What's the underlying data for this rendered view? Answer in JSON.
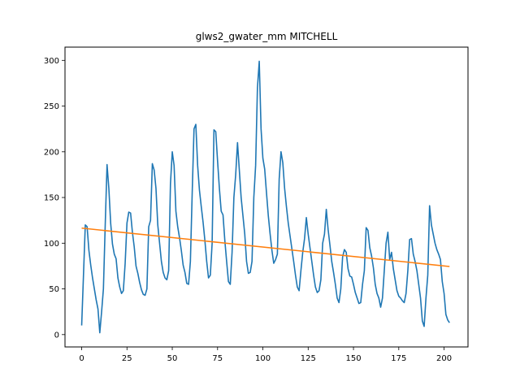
{
  "chart_data": {
    "type": "line",
    "title": "glws2_gwater_mm MITCHELL",
    "xlabel": "",
    "ylabel": "",
    "xlim": [
      -9.2,
      213.2
    ],
    "ylim": [
      -13.5,
      314.5
    ],
    "grid": false,
    "xticks": [
      0,
      25,
      50,
      75,
      100,
      125,
      150,
      175,
      200
    ],
    "yticks": [
      0,
      50,
      100,
      150,
      200,
      250,
      300
    ],
    "series": [
      {
        "color": "#1f77b4",
        "x": [
          0,
          1,
          2,
          3,
          4,
          5,
          6,
          7,
          8,
          9,
          10,
          11,
          12,
          13,
          14,
          15,
          16,
          17,
          18,
          19,
          20,
          21,
          22,
          23,
          24,
          25,
          26,
          27,
          28,
          29,
          30,
          31,
          32,
          33,
          34,
          35,
          36,
          37,
          38,
          39,
          40,
          41,
          42,
          43,
          44,
          45,
          46,
          47,
          48,
          49,
          50,
          51,
          52,
          53,
          54,
          55,
          56,
          57,
          58,
          59,
          60,
          61,
          62,
          63,
          64,
          65,
          66,
          67,
          68,
          69,
          70,
          71,
          72,
          73,
          74,
          75,
          76,
          77,
          78,
          79,
          80,
          81,
          82,
          83,
          84,
          85,
          86,
          87,
          88,
          89,
          90,
          91,
          92,
          93,
          94,
          95,
          96,
          97,
          98,
          99,
          100,
          101,
          102,
          103,
          104,
          105,
          106,
          107,
          108,
          109,
          110,
          111,
          112,
          113,
          114,
          115,
          116,
          117,
          118,
          119,
          120,
          121,
          122,
          123,
          124,
          125,
          126,
          127,
          128,
          129,
          130,
          131,
          132,
          133,
          134,
          135,
          136,
          137,
          138,
          139,
          140,
          141,
          142,
          143,
          144,
          145,
          146,
          147,
          148,
          149,
          150,
          151,
          152,
          153,
          154,
          155,
          156,
          157,
          158,
          159,
          160,
          161,
          162,
          163,
          164,
          165,
          166,
          167,
          168,
          169,
          170,
          171,
          172,
          173,
          174,
          175,
          176,
          177,
          178,
          179,
          180,
          181,
          182,
          183,
          184,
          185,
          186,
          187,
          188,
          189,
          190,
          191,
          192,
          193,
          194,
          195,
          196,
          197,
          198,
          199,
          200,
          201,
          202,
          203
        ],
        "values": [
          10,
          65,
          120,
          118,
          92,
          76,
          62,
          50,
          38,
          28,
          2,
          25,
          50,
          120,
          186,
          160,
          122,
          99,
          88,
          83,
          62,
          52,
          45,
          48,
          78,
          122,
          134,
          133,
          112,
          96,
          75,
          67,
          57,
          49,
          44,
          43,
          50,
          118,
          125,
          187,
          180,
          160,
          120,
          100,
          80,
          68,
          62,
          60,
          70,
          165,
          200,
          185,
          135,
          118,
          106,
          92,
          76,
          68,
          56,
          55,
          80,
          155,
          225,
          230,
          185,
          158,
          140,
          123,
          103,
          80,
          62,
          65,
          100,
          224,
          222,
          190,
          160,
          135,
          131,
          103,
          80,
          58,
          55,
          90,
          150,
          175,
          210,
          180,
          150,
          130,
          110,
          80,
          67,
          68,
          80,
          150,
          185,
          270,
          299,
          225,
          193,
          181,
          155,
          130,
          110,
          92,
          78,
          82,
          88,
          170,
          200,
          188,
          160,
          140,
          122,
          108,
          94,
          80,
          65,
          52,
          48,
          70,
          90,
          105,
          128,
          110,
          95,
          80,
          65,
          52,
          46,
          48,
          60,
          100,
          110,
          137,
          115,
          98,
          80,
          68,
          55,
          40,
          35,
          50,
          85,
          93,
          90,
          72,
          64,
          63,
          55,
          46,
          40,
          34,
          35,
          55,
          70,
          117,
          114,
          95,
          86,
          73,
          55,
          45,
          40,
          30,
          40,
          70,
          100,
          112,
          82,
          90,
          72,
          60,
          48,
          42,
          40,
          37,
          35,
          45,
          70,
          104,
          105,
          88,
          80,
          70,
          55,
          40,
          15,
          9,
          40,
          65,
          141,
          120,
          110,
          100,
          93,
          88,
          82,
          58,
          45,
          22,
          16,
          13
        ]
      },
      {
        "color": "#ff7f0e",
        "x": [
          0,
          203
        ],
        "values": [
          116.5,
          74.5
        ]
      }
    ]
  }
}
